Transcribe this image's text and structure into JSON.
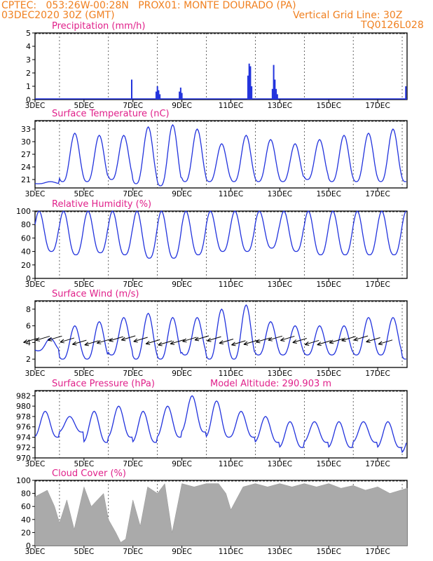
{
  "header": {
    "line1": "CPTEC:   053:26W-00:28N   PROX01: MONTE DOURADO (PA)",
    "line2": "03DEC2020 30Z (GMT)",
    "grid_note": "Vertical Grid Line: 30Z",
    "code": "TQ0126L028"
  },
  "colors": {
    "header": "#f08020",
    "title": "#e0208a",
    "series": "#2233dd",
    "cloud": "#aaaaaa"
  },
  "x_axis": {
    "range_days": [
      3,
      18.2
    ],
    "ticks": [
      {
        "day": 3,
        "label": "3DEC"
      },
      {
        "day": 5,
        "label": "5DEC"
      },
      {
        "day": 7,
        "label": "7DEC"
      },
      {
        "day": 9,
        "label": "9DEC"
      },
      {
        "day": 11,
        "label": "11DEC"
      },
      {
        "day": 13,
        "label": "13DEC"
      },
      {
        "day": 15,
        "label": "15DEC"
      },
      {
        "day": 17,
        "label": "17DEC"
      }
    ],
    "grid_days": [
      4,
      6,
      8,
      10,
      12,
      14,
      16,
      18
    ]
  },
  "chart_data": [
    {
      "type": "bar",
      "title": "Precipitation (mm/h)",
      "ylim": [
        0,
        5
      ],
      "yticks": [
        0,
        1,
        2,
        3,
        4,
        5
      ],
      "x": [
        6.95,
        7.95,
        8.0,
        8.05,
        8.1,
        8.9,
        8.95,
        9.0,
        11.7,
        11.75,
        11.8,
        11.85,
        12.7,
        12.75,
        12.8,
        12.85,
        12.9,
        18.15
      ],
      "values": [
        1.5,
        0.6,
        1.0,
        0.7,
        0.4,
        0.6,
        0.9,
        0.5,
        1.8,
        2.7,
        2.5,
        1.0,
        0.8,
        2.6,
        1.5,
        0.8,
        0.4,
        1.0
      ]
    },
    {
      "type": "line",
      "title": "Surface Temperature (nC)",
      "ylim": [
        19,
        35
      ],
      "yticks": [
        21,
        24,
        27,
        30,
        33
      ],
      "daily_max": [
        20.5,
        32,
        31.5,
        31.5,
        33.5,
        34,
        33,
        29.5,
        31.5,
        30.5,
        29.5,
        30.5,
        31.5,
        32,
        33,
        32.5
      ],
      "daily_min": [
        20,
        20.5,
        20.5,
        21,
        20,
        19.5,
        20.5,
        20.5,
        20.5,
        20.5,
        20.5,
        21,
        20.5,
        20.5,
        20.5,
        20.5
      ]
    },
    {
      "type": "line",
      "title": "Relative Humidity (%)",
      "ylim": [
        0,
        100
      ],
      "yticks": [
        0,
        20,
        40,
        60,
        80,
        100
      ],
      "daily_max": [
        100,
        100,
        100,
        100,
        100,
        100,
        100,
        100,
        100,
        100,
        100,
        100,
        100,
        100,
        100,
        100
      ],
      "daily_min": [
        40,
        35,
        38,
        35,
        30,
        30,
        35,
        40,
        40,
        45,
        40,
        35,
        35,
        35,
        35,
        35
      ]
    },
    {
      "type": "line",
      "title": "Surface Wind (m/s)",
      "ylim": [
        1,
        9
      ],
      "yticks": [
        2,
        4,
        6,
        8
      ],
      "daily_max": [
        4.5,
        6,
        6.5,
        7,
        7.5,
        7,
        7,
        8,
        8.5,
        6.5,
        6,
        6,
        6,
        7,
        7,
        7.5
      ],
      "daily_min": [
        3,
        2,
        2,
        2.5,
        2,
        2,
        2.5,
        2,
        2,
        2.5,
        2.5,
        2.5,
        2.5,
        2.5,
        2.5,
        2
      ]
    },
    {
      "type": "line",
      "title": "Surface Pressure (hPa)",
      "annotation": "Model Altitude: 290.903 m",
      "ylim": [
        970,
        983
      ],
      "yticks": [
        970,
        972,
        974,
        976,
        978,
        980,
        982
      ],
      "daily_max": [
        979,
        978,
        979,
        980,
        979,
        980,
        982,
        981,
        979,
        978,
        977,
        977,
        977,
        977,
        977,
        976
      ],
      "daily_min": [
        974,
        975,
        973,
        974,
        973,
        974,
        975,
        974,
        974,
        973,
        972,
        973,
        972,
        973,
        972,
        971
      ]
    },
    {
      "type": "area",
      "title": "Cloud Cover (%)",
      "ylim": [
        0,
        100
      ],
      "yticks": [
        0,
        20,
        40,
        60,
        80,
        100
      ],
      "x": [
        3,
        3.5,
        3.8,
        4,
        4.3,
        4.6,
        5,
        5.3,
        5.8,
        6,
        6.3,
        6.5,
        6.7,
        7,
        7.3,
        7.6,
        8,
        8.3,
        8.6,
        9,
        9.5,
        10,
        10.5,
        10.8,
        11,
        11.5,
        12,
        12.5,
        13,
        13.5,
        14,
        14.5,
        15,
        15.5,
        16,
        16.5,
        17,
        17.5,
        18.2
      ],
      "values": [
        75,
        85,
        60,
        35,
        70,
        25,
        90,
        60,
        80,
        40,
        20,
        5,
        10,
        70,
        30,
        90,
        80,
        95,
        20,
        95,
        90,
        95,
        95,
        80,
        55,
        90,
        95,
        90,
        95,
        90,
        95,
        90,
        95,
        88,
        92,
        85,
        90,
        80,
        88
      ]
    }
  ]
}
